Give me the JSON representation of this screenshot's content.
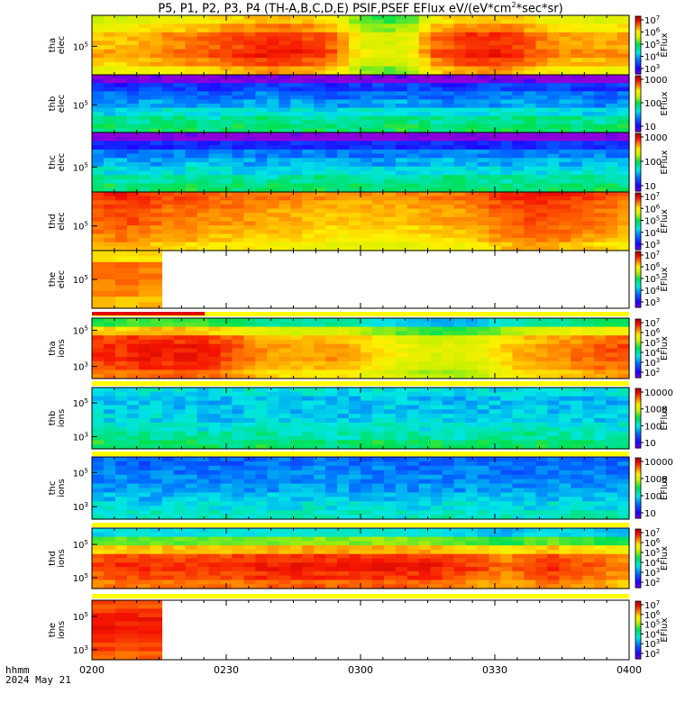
{
  "title": {
    "before": "P5, P1, P2, P3, P4 (TH-A,B,C,D,E) PSIF,PSEF EFlux eV/(eV*cm",
    "sup1": "2",
    "after": "*sec*sr)"
  },
  "footer": {
    "line1": "hhmm",
    "line2": "2024 May 21"
  },
  "x_axis": {
    "ticks": [
      {
        "t": 0,
        "label": "0200"
      },
      {
        "t": 30,
        "label": "0230"
      },
      {
        "t": 60,
        "label": "0300"
      },
      {
        "t": 90,
        "label": "0330"
      },
      {
        "t": 120,
        "label": "0400"
      }
    ],
    "range_minutes": [
      0,
      120
    ]
  },
  "colorbar_title": "EFlux",
  "chart_data": [
    {
      "type": "heatmap",
      "panel": "tha-elec",
      "ylabel": [
        "tha",
        "elec"
      ],
      "ytick_labels": [
        {
          "label": "10",
          "exp": "5"
        }
      ],
      "colorbar_labels": [
        {
          "base": "10",
          "exp": "7"
        },
        {
          "base": "10",
          "exp": "6"
        },
        {
          "base": "10",
          "exp": "5"
        },
        {
          "base": "10",
          "exp": "4"
        },
        {
          "base": "10",
          "exp": "3"
        }
      ],
      "colorbar_log_range": [
        2.5,
        7.2
      ],
      "data_end_fraction": 1.0,
      "level_profile_by_time": [
        0.78,
        0.78,
        0.8,
        0.82,
        0.84,
        0.86,
        0.88,
        0.9,
        0.9,
        0.88,
        0.84,
        0.7,
        0.66,
        0.68,
        0.84,
        0.88,
        0.9,
        0.9,
        0.86,
        0.82,
        0.8,
        0.8,
        0.8
      ],
      "level_profile_by_energy": [
        -0.12,
        -0.06,
        0.0,
        0.0,
        0.02,
        -0.02,
        -0.08
      ]
    },
    {
      "type": "heatmap",
      "panel": "thb-elec",
      "ylabel": [
        "thb",
        "elec"
      ],
      "ytick_labels": [
        {
          "label": "10",
          "exp": "5"
        }
      ],
      "colorbar_labels": [
        {
          "base": "1000",
          "exp": ""
        },
        {
          "base": "100",
          "exp": ""
        },
        {
          "base": "10",
          "exp": ""
        }
      ],
      "colorbar_log_range": [
        0.7,
        3.8
      ],
      "data_end_fraction": 1.0,
      "level_profile_by_time": [
        0.3,
        0.28,
        0.3,
        0.32,
        0.3,
        0.28,
        0.3,
        0.32,
        0.3,
        0.3,
        0.28,
        0.3,
        0.3,
        0.32,
        0.3,
        0.28,
        0.3,
        0.3,
        0.32,
        0.3,
        0.3,
        0.28,
        0.3
      ],
      "level_profile_by_energy": [
        -0.3,
        -0.12,
        -0.05,
        0.0,
        0.08,
        0.16,
        0.2
      ]
    },
    {
      "type": "heatmap",
      "panel": "thc-elec",
      "ylabel": [
        "thc",
        "elec"
      ],
      "ytick_labels": [
        {
          "label": "10",
          "exp": "5"
        }
      ],
      "colorbar_labels": [
        {
          "base": "1000",
          "exp": ""
        },
        {
          "base": "100",
          "exp": ""
        },
        {
          "base": "10",
          "exp": ""
        }
      ],
      "colorbar_log_range": [
        0.7,
        3.8
      ],
      "data_end_fraction": 1.0,
      "level_profile_by_time": [
        0.3,
        0.3,
        0.28,
        0.3,
        0.32,
        0.3,
        0.3,
        0.28,
        0.3,
        0.32,
        0.3,
        0.3,
        0.28,
        0.3,
        0.3,
        0.32,
        0.3,
        0.3,
        0.28,
        0.3,
        0.3,
        0.32,
        0.3
      ],
      "level_profile_by_energy": [
        -0.32,
        -0.14,
        -0.04,
        0.02,
        0.08,
        0.15,
        0.2
      ]
    },
    {
      "type": "heatmap",
      "panel": "thd-elec",
      "ylabel": [
        "thd",
        "elec"
      ],
      "ytick_labels": [
        {
          "label": "10",
          "exp": "5"
        }
      ],
      "colorbar_labels": [
        {
          "base": "10",
          "exp": "7"
        },
        {
          "base": "10",
          "exp": "6"
        },
        {
          "base": "10",
          "exp": "5"
        },
        {
          "base": "10",
          "exp": "4"
        },
        {
          "base": "10",
          "exp": "3"
        }
      ],
      "colorbar_log_range": [
        2.5,
        7.2
      ],
      "data_end_fraction": 1.0,
      "level_profile_by_time": [
        0.88,
        0.9,
        0.88,
        0.86,
        0.86,
        0.84,
        0.84,
        0.82,
        0.82,
        0.8,
        0.8,
        0.8,
        0.8,
        0.8,
        0.82,
        0.82,
        0.84,
        0.88,
        0.9,
        0.9,
        0.88,
        0.86,
        0.84
      ],
      "level_profile_by_energy": [
        0.02,
        0.0,
        -0.02,
        -0.02,
        -0.04,
        -0.06,
        -0.1
      ]
    },
    {
      "type": "heatmap",
      "panel": "the-elec",
      "ylabel": [
        "the",
        "elec"
      ],
      "ytick_labels": [
        {
          "label": "10",
          "exp": "5"
        }
      ],
      "colorbar_labels": [
        {
          "base": "10",
          "exp": "7"
        },
        {
          "base": "10",
          "exp": "6"
        },
        {
          "base": "10",
          "exp": "5"
        },
        {
          "base": "10",
          "exp": "4"
        },
        {
          "base": "10",
          "exp": "3"
        }
      ],
      "colorbar_log_range": [
        2.5,
        7.2
      ],
      "data_end_fraction": 0.13,
      "level_profile_by_time": [
        0.82,
        0.82,
        0.82
      ],
      "level_profile_by_energy": [
        -0.06,
        0.02,
        0.02,
        0.0,
        -0.04
      ]
    },
    {
      "type": "heatmap",
      "panel": "tha-ions",
      "ylabel": [
        "tha",
        "ions"
      ],
      "ytick_labels": [
        {
          "label": "10",
          "exp": "5"
        },
        {
          "label": "10",
          "exp": "3"
        }
      ],
      "colorbar_labels": [
        {
          "base": "10",
          "exp": "7"
        },
        {
          "base": "10",
          "exp": "6"
        },
        {
          "base": "10",
          "exp": "5"
        },
        {
          "base": "10",
          "exp": "4"
        },
        {
          "base": "10",
          "exp": "3"
        },
        {
          "base": "10",
          "exp": "2"
        }
      ],
      "colorbar_log_range": [
        1.8,
        7.2
      ],
      "data_end_fraction": 1.0,
      "level_profile_by_time": [
        0.86,
        0.86,
        0.88,
        0.88,
        0.88,
        0.86,
        0.82,
        0.78,
        0.76,
        0.76,
        0.78,
        0.74,
        0.7,
        0.66,
        0.64,
        0.64,
        0.66,
        0.72,
        0.76,
        0.78,
        0.8,
        0.82,
        0.84
      ],
      "level_profile_by_energy": [
        -0.32,
        -0.1,
        0.02,
        0.04,
        0.04,
        0.02,
        -0.02
      ]
    },
    {
      "type": "heatmap",
      "panel": "thb-ions",
      "ylabel": [
        "thb",
        "ions"
      ],
      "ytick_labels": [
        {
          "label": "10",
          "exp": "5"
        },
        {
          "label": "10",
          "exp": "3"
        }
      ],
      "colorbar_labels": [
        {
          "base": "10000",
          "exp": ""
        },
        {
          "base": "1000",
          "exp": ""
        },
        {
          "base": "100",
          "exp": ""
        },
        {
          "base": "10",
          "exp": ""
        }
      ],
      "colorbar_log_range": [
        0.7,
        4.6
      ],
      "data_end_fraction": 1.0,
      "level_profile_by_time": [
        0.42,
        0.4,
        0.42,
        0.4,
        0.4,
        0.38,
        0.4,
        0.42,
        0.4,
        0.4,
        0.38,
        0.4,
        0.42,
        0.4,
        0.4,
        0.38,
        0.4,
        0.4,
        0.42,
        0.4,
        0.4,
        0.38,
        0.4
      ],
      "level_profile_by_energy": [
        -0.02,
        -0.06,
        -0.06,
        -0.04,
        0.0,
        0.04,
        0.1
      ]
    },
    {
      "type": "heatmap",
      "panel": "thc-ions",
      "ylabel": [
        "thc",
        "ions"
      ],
      "ytick_labels": [
        {
          "label": "10",
          "exp": "5"
        },
        {
          "label": "10",
          "exp": "3"
        }
      ],
      "colorbar_labels": [
        {
          "base": "10000",
          "exp": ""
        },
        {
          "base": "1000",
          "exp": ""
        },
        {
          "base": "100",
          "exp": ""
        },
        {
          "base": "10",
          "exp": ""
        }
      ],
      "colorbar_log_range": [
        0.7,
        4.6
      ],
      "data_end_fraction": 1.0,
      "level_profile_by_time": [
        0.3,
        0.3,
        0.28,
        0.3,
        0.3,
        0.3,
        0.28,
        0.3,
        0.3,
        0.32,
        0.3,
        0.3,
        0.3,
        0.28,
        0.3,
        0.3,
        0.3,
        0.3,
        0.28,
        0.3,
        0.3,
        0.3,
        0.3
      ],
      "level_profile_by_energy": [
        -0.06,
        -0.04,
        -0.02,
        0.0,
        0.04,
        0.08,
        0.12
      ]
    },
    {
      "type": "heatmap",
      "panel": "thd-ions",
      "ylabel": [
        "thd",
        "ions"
      ],
      "ytick_labels": [
        {
          "label": "10",
          "exp": "5"
        },
        {
          "label": "10",
          "exp": "5"
        }
      ],
      "colorbar_labels": [
        {
          "base": "10",
          "exp": "7"
        },
        {
          "base": "10",
          "exp": "6"
        },
        {
          "base": "10",
          "exp": "5"
        },
        {
          "base": "10",
          "exp": "4"
        },
        {
          "base": "10",
          "exp": "3"
        },
        {
          "base": "10",
          "exp": "2"
        }
      ],
      "colorbar_log_range": [
        1.8,
        7.2
      ],
      "data_end_fraction": 1.0,
      "level_profile_by_time": [
        0.84,
        0.86,
        0.86,
        0.86,
        0.86,
        0.86,
        0.86,
        0.88,
        0.88,
        0.88,
        0.88,
        0.88,
        0.88,
        0.88,
        0.88,
        0.86,
        0.84,
        0.8,
        0.84,
        0.86,
        0.84,
        0.82,
        0.8
      ],
      "level_profile_by_energy": [
        -0.48,
        -0.28,
        -0.08,
        0.02,
        0.04,
        0.02,
        -0.02
      ]
    },
    {
      "type": "heatmap",
      "panel": "the-ions",
      "ylabel": [
        "the",
        "ions"
      ],
      "ytick_labels": [
        {
          "label": "10",
          "exp": "5"
        },
        {
          "label": "10",
          "exp": "3"
        }
      ],
      "colorbar_labels": [
        {
          "base": "10",
          "exp": "7"
        },
        {
          "base": "10",
          "exp": "6"
        },
        {
          "base": "10",
          "exp": "5"
        },
        {
          "base": "10",
          "exp": "4"
        },
        {
          "base": "10",
          "exp": "3"
        },
        {
          "base": "10",
          "exp": "2"
        }
      ],
      "colorbar_log_range": [
        1.8,
        7.2
      ],
      "data_end_fraction": 0.13,
      "level_profile_by_time": [
        0.9,
        0.9,
        0.9
      ],
      "level_profile_by_energy": [
        -0.02,
        0.0,
        0.02,
        0.02,
        0.0,
        -0.02,
        -0.04
      ]
    }
  ],
  "status_bars": [
    {
      "name": "the-elec-status",
      "red_fraction": 0.21
    },
    {
      "name": "tha-ions-status",
      "red_fraction": 0.0
    },
    {
      "name": "thb-ions-status",
      "red_fraction": 0.0
    },
    {
      "name": "thc-ions-status",
      "red_fraction": 0.0
    },
    {
      "name": "thd-ions-status",
      "red_fraction": 0.0
    },
    {
      "name": "the-ions-status",
      "red_fraction": 0.085
    }
  ],
  "colors": {
    "status_ok": "#ffff00",
    "status_bad": "#e00000",
    "axis": "#000000"
  }
}
